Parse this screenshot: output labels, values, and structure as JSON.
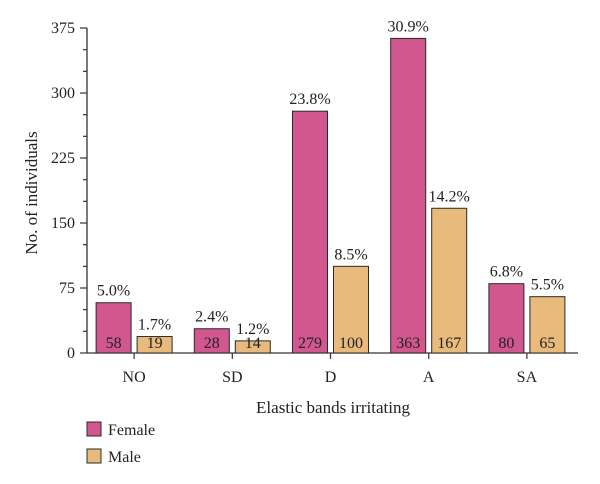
{
  "colors": {
    "female": "#d2578f",
    "male": "#e8bb7c"
  },
  "chart_data": {
    "type": "bar",
    "categories": [
      "NO",
      "SD",
      "D",
      "A",
      "SA"
    ],
    "series": [
      {
        "name": "Female",
        "values": [
          58,
          28,
          279,
          363,
          80
        ],
        "percent_labels": [
          "5.0%",
          "2.4%",
          "23.8%",
          "30.9%",
          "6.8%"
        ]
      },
      {
        "name": "Male",
        "values": [
          19,
          14,
          100,
          167,
          65
        ],
        "percent_labels": [
          "1.7%",
          "1.2%",
          "8.5%",
          "14.2%",
          "5.5%"
        ]
      }
    ],
    "xlabel": "Elastic bands irritating",
    "ylabel": "No. of individuals",
    "ylim": [
      0,
      375
    ],
    "yticks": [
      0,
      75,
      150,
      225,
      300,
      375
    ],
    "legend_position": "bottom-left"
  }
}
